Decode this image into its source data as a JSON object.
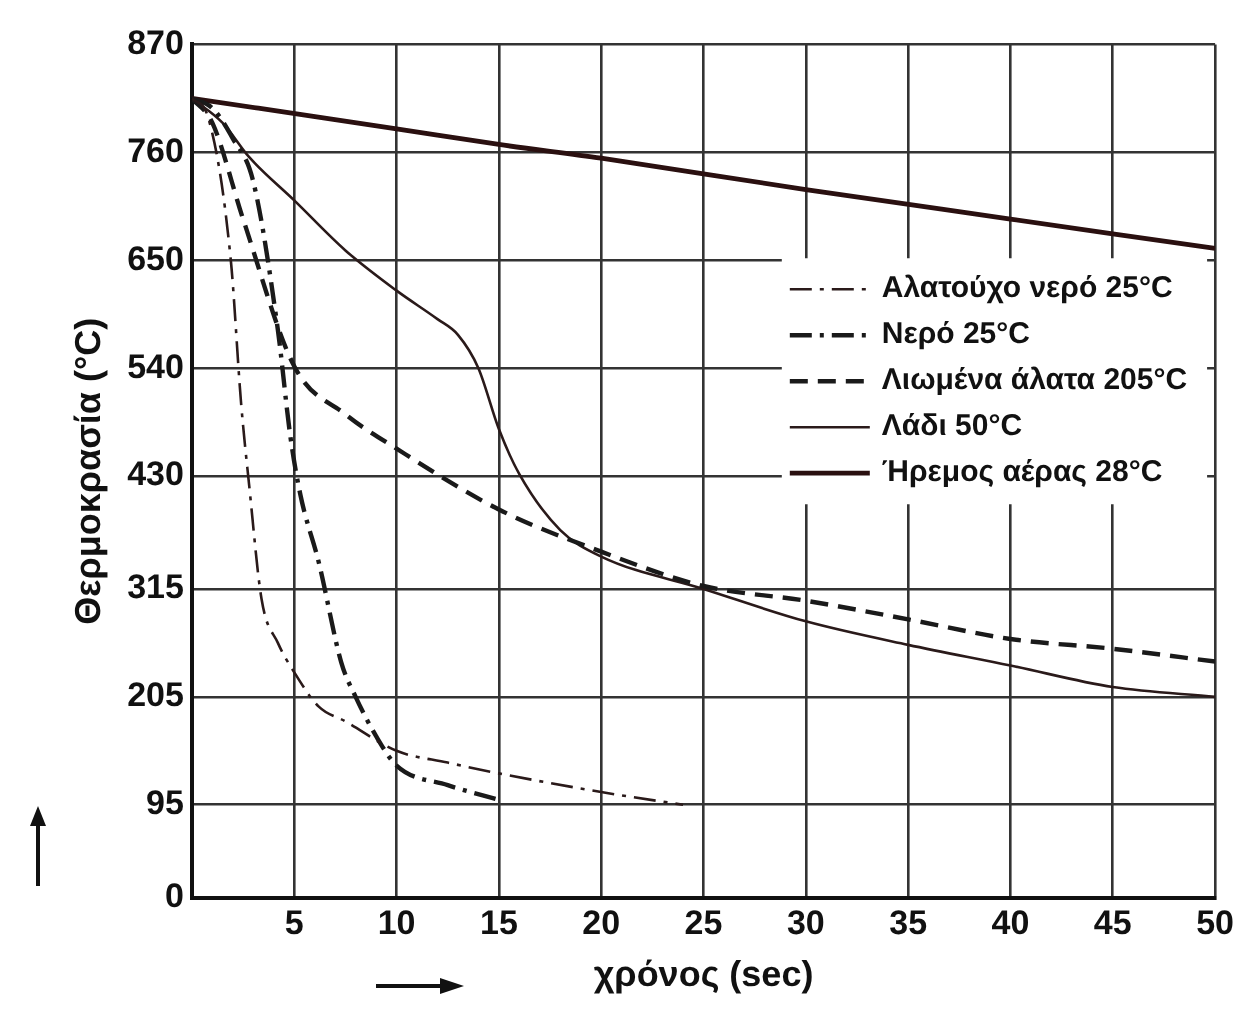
{
  "chart_data": {
    "type": "line",
    "xlabel": "χρόνος (sec)",
    "ylabel": "Θερμοκρασία (°C)",
    "xlim": [
      0,
      50
    ],
    "xticks": [
      {
        "value": 0,
        "label": null
      },
      5,
      10,
      15,
      20,
      25,
      30,
      35,
      40,
      45,
      50
    ],
    "ylim": [
      0,
      870
    ],
    "yticks": [
      0,
      95,
      205,
      315,
      430,
      540,
      650,
      760,
      870
    ],
    "grid": true,
    "legend": "right",
    "marker": "none",
    "series": [
      {
        "name": "Αλατούχο νερό 25°C",
        "color": "#2a1a1a",
        "line_style": "dashdot",
        "x": [
          0,
          0.8,
          1.9,
          2.4,
          2.8,
          3.4,
          4.2,
          5,
          6.2,
          7.5,
          10,
          12.5,
          15,
          20,
          24
        ],
        "values": [
          815,
          795,
          650,
          505,
          420,
          305,
          260,
          230,
          195,
          180,
          150,
          138,
          127,
          108,
          95
        ]
      },
      {
        "name": "Νερό 25°C",
        "color": "#1a1a1a",
        "line_style": "dashdot",
        "x": [
          0,
          1,
          2,
          3,
          4.2,
          4.8,
          5.3,
          6.2,
          7.3,
          8,
          9,
          10,
          12.5,
          15
        ],
        "values": [
          815,
          805,
          774,
          730,
          579,
          472,
          411,
          342,
          240,
          205,
          165,
          135,
          115,
          100
        ]
      },
      {
        "name": "Λιωμένα άλατα 205°C",
        "color": "#1a1a1a",
        "line_style": "dashed",
        "x": [
          0,
          1,
          2.5,
          5,
          7.5,
          10,
          15,
          20,
          25,
          30,
          35,
          40,
          45,
          50
        ],
        "values": [
          815,
          790,
          692,
          542,
          493,
          458,
          396,
          353,
          318,
          303,
          284,
          264,
          254,
          241
        ]
      },
      {
        "name": "Λάδι 50°C",
        "color": "#2a1a1a",
        "line_style": "solid",
        "x": [
          0,
          1.5,
          2.8,
          5,
          7.5,
          10,
          12,
          13,
          14,
          15,
          16,
          18,
          20,
          25,
          30,
          35,
          40,
          45,
          50
        ],
        "values": [
          815,
          790,
          755,
          711,
          660,
          619,
          590,
          574,
          540,
          478,
          432,
          375,
          348,
          315,
          282,
          258,
          237,
          215,
          205
        ]
      },
      {
        "name": "Ήρεμος αέρας 28°C",
        "color": "#2a1010",
        "line_style": "solid",
        "x": [
          0,
          10,
          15,
          20,
          30,
          40,
          50
        ],
        "values": [
          815,
          784,
          768,
          754,
          722,
          692,
          662
        ]
      }
    ]
  }
}
